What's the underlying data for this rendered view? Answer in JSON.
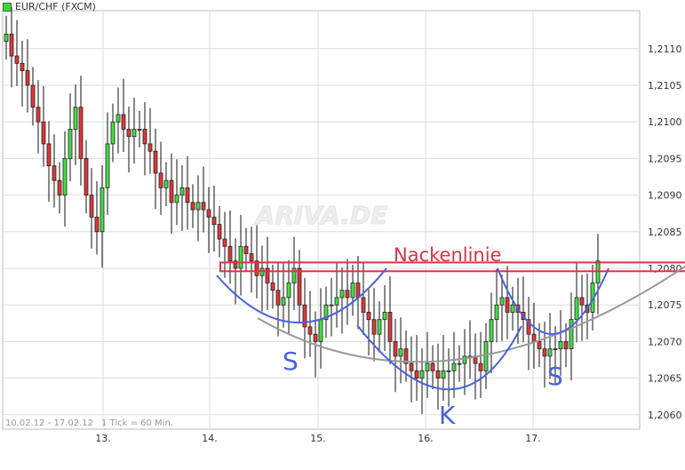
{
  "title": "EUR/CHF (FXCM)",
  "footer_range": "10.02.12 - 17.02.12",
  "footer_tick": "1 Tick = 60 Min.",
  "watermark": "ARIVA.DE",
  "annotations": {
    "neckline": "Nackenlinie",
    "left_shoulder": "S",
    "head": "K",
    "right_shoulder": "S"
  },
  "colors": {
    "up": "#44dd44",
    "down": "#dd3838",
    "neckline": "#dd3344",
    "pattern": "#4a62dd",
    "trend": "#999999"
  },
  "chart_data": {
    "type": "candlestick",
    "title": "EUR/CHF (FXCM)",
    "x_tick_labels": [
      "13.",
      "14.",
      "15.",
      "16.",
      "17."
    ],
    "y_tick_labels": [
      "1,2110",
      "1,2105",
      "1,2100",
      "1,2095",
      "1,2090",
      "1,2085",
      "1,2080",
      "1,2075",
      "1,2070",
      "1,2065",
      "1,2060"
    ],
    "y_ticks": [
      1.211,
      1.2105,
      1.21,
      1.2095,
      1.209,
      1.2085,
      1.208,
      1.2075,
      1.207,
      1.2065,
      1.206
    ],
    "ylim": [
      1.20585,
      1.21165
    ],
    "grid": true,
    "first_open": 1.2111,
    "closes": [
      1.2112,
      1.2109,
      1.2108,
      1.2107,
      1.2105,
      1.2102,
      1.21,
      1.2097,
      1.2094,
      1.2092,
      1.209,
      1.2095,
      1.2099,
      1.2102,
      1.2095,
      1.209,
      1.2087,
      1.2085,
      1.2091,
      1.2097,
      1.21,
      1.2101,
      1.2099,
      1.2098,
      1.2099,
      1.2099,
      1.2097,
      1.2096,
      1.2093,
      1.2091,
      1.2092,
      1.2089,
      1.209,
      1.2091,
      1.2089,
      1.2088,
      1.2089,
      1.2088,
      1.2087,
      1.2086,
      1.2084,
      1.2083,
      1.2081,
      1.208,
      1.2083,
      1.2082,
      1.2081,
      1.2079,
      1.208,
      1.2078,
      1.2077,
      1.2075,
      1.2076,
      1.2078,
      1.208,
      1.2075,
      1.2072,
      1.2071,
      1.207,
      1.2073,
      1.2075,
      1.2075,
      1.2076,
      1.2077,
      1.2076,
      1.2078,
      1.2076,
      1.2074,
      1.2073,
      1.2071,
      1.2073,
      1.2074,
      1.207,
      1.2068,
      1.2069,
      1.2067,
      1.2066,
      1.2065,
      1.2066,
      1.2067,
      1.2066,
      1.2065,
      1.2066,
      1.2066,
      1.2067,
      1.2067,
      1.2068,
      1.2068,
      1.2067,
      1.2066,
      1.207,
      1.2073,
      1.2075,
      1.2076,
      1.2074,
      1.2075,
      1.2074,
      1.2073,
      1.2071,
      1.207,
      1.2069,
      1.2068,
      1.2069,
      1.2069,
      1.207,
      1.2069,
      1.2073,
      1.2076,
      1.2075,
      1.2074,
      1.2078,
      1.2081
    ],
    "neckline_band": [
      1.20796,
      1.20808
    ]
  }
}
